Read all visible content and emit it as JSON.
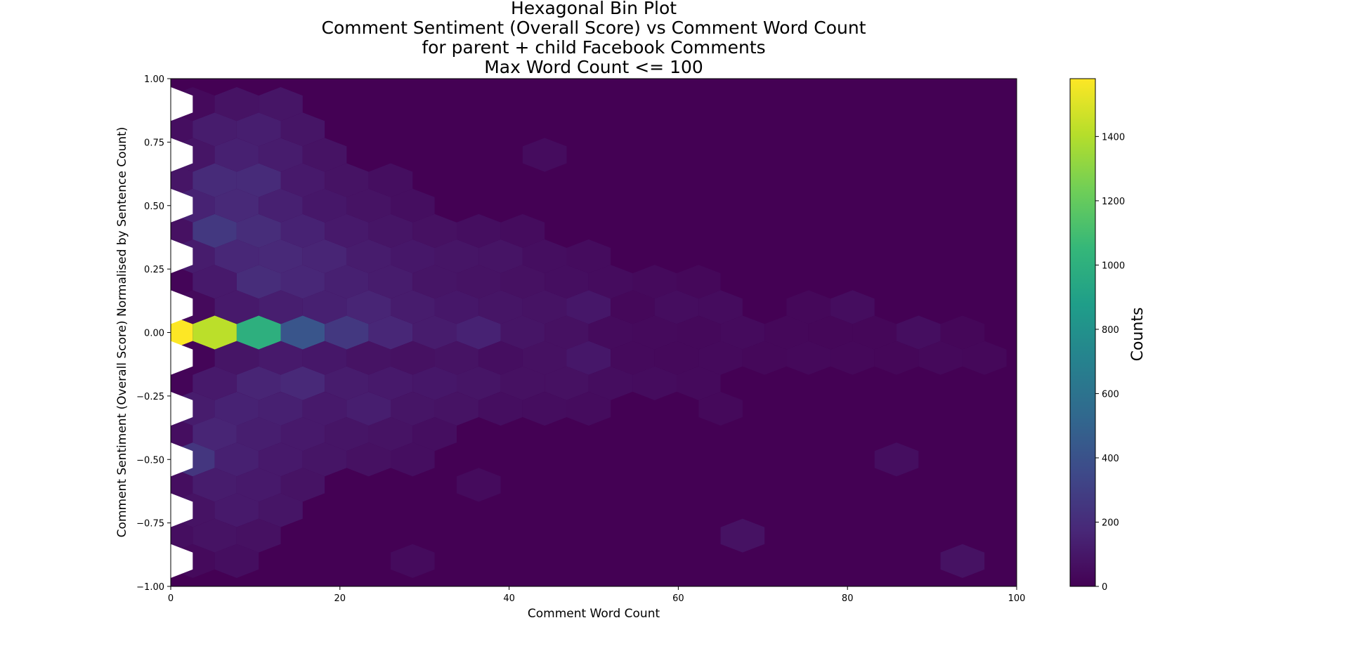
{
  "chart_data": {
    "type": "hexbin",
    "title_lines": [
      "Hexagonal Bin Plot",
      "Comment Sentiment (Overall Score) vs Comment Word Count",
      "for parent + child Facebook Comments",
      "Max Word Count <= 100"
    ],
    "xlabel": "Comment Word Count",
    "ylabel": "Comment Sentiment (Overall Score) Normalised by Sentence Count)",
    "xlim": [
      0,
      100
    ],
    "ylim": [
      -1.0,
      1.0
    ],
    "xticks": [
      0,
      20,
      40,
      60,
      80,
      100
    ],
    "xtick_labels": [
      "0",
      "20",
      "40",
      "60",
      "80",
      "100"
    ],
    "yticks": [
      1.0,
      0.75,
      0.5,
      0.25,
      0.0,
      -0.25,
      -0.5,
      -0.75,
      -1.0
    ],
    "ytick_labels": [
      "1.00",
      "0.75",
      "0.50",
      "0.25",
      "0.00",
      "−0.25",
      "−0.50",
      "−0.75",
      "−1.00"
    ],
    "colorbar": {
      "label": "Counts",
      "range": [
        0,
        1580
      ],
      "ticks": [
        0,
        200,
        400,
        600,
        800,
        1000,
        1200,
        1400
      ],
      "tick_labels": [
        "0",
        "200",
        "400",
        "600",
        "800",
        "1000",
        "1200",
        "1400"
      ],
      "colormap": "viridis"
    },
    "colormap_stops": [
      "#440154",
      "#482878",
      "#3e4989",
      "#31688e",
      "#26828e",
      "#1f9e89",
      "#35b779",
      "#6ece58",
      "#b5de2b",
      "#fde725"
    ],
    "background_color": "#440154",
    "grid": {
      "x_start": 0,
      "x_step": 5.2,
      "y_start": -1.0,
      "y_step": 0.1,
      "columns": 20,
      "rows": 21
    },
    "bins": [
      {
        "x": 0.0,
        "y": 0.0,
        "count": 1580
      },
      {
        "x": 5.2,
        "y": 0.0,
        "count": 1420
      },
      {
        "x": 10.4,
        "y": 0.0,
        "count": 1000
      },
      {
        "x": 15.6,
        "y": 0.0,
        "count": 420
      },
      {
        "x": 20.8,
        "y": 0.0,
        "count": 260
      },
      {
        "x": 26.0,
        "y": 0.0,
        "count": 170
      },
      {
        "x": 31.2,
        "y": 0.0,
        "count": 120
      },
      {
        "x": 36.4,
        "y": 0.0,
        "count": 150
      },
      {
        "x": 41.6,
        "y": 0.0,
        "count": 90
      },
      {
        "x": 46.8,
        "y": 0.0,
        "count": 70
      },
      {
        "x": 52.0,
        "y": 0.0,
        "count": 45
      },
      {
        "x": 57.2,
        "y": 0.0,
        "count": 40
      },
      {
        "x": 62.4,
        "y": 0.0,
        "count": 35
      },
      {
        "x": 67.6,
        "y": 0.0,
        "count": 45
      },
      {
        "x": 72.8,
        "y": 0.0,
        "count": 30
      },
      {
        "x": 78.0,
        "y": 0.0,
        "count": 25
      },
      {
        "x": 83.2,
        "y": 0.0,
        "count": 25
      },
      {
        "x": 88.4,
        "y": 0.0,
        "count": 60
      },
      {
        "x": 93.6,
        "y": 0.0,
        "count": 25
      },
      {
        "x": 2.6,
        "y": 0.1,
        "count": 40
      },
      {
        "x": 7.8,
        "y": 0.1,
        "count": 110
      },
      {
        "x": 13.0,
        "y": 0.1,
        "count": 130
      },
      {
        "x": 18.2,
        "y": 0.1,
        "count": 140
      },
      {
        "x": 23.4,
        "y": 0.1,
        "count": 160
      },
      {
        "x": 28.6,
        "y": 0.1,
        "count": 120
      },
      {
        "x": 33.8,
        "y": 0.1,
        "count": 100
      },
      {
        "x": 39.0,
        "y": 0.1,
        "count": 90
      },
      {
        "x": 44.2,
        "y": 0.1,
        "count": 80
      },
      {
        "x": 49.4,
        "y": 0.1,
        "count": 100
      },
      {
        "x": 54.6,
        "y": 0.1,
        "count": 30
      },
      {
        "x": 59.8,
        "y": 0.1,
        "count": 55
      },
      {
        "x": 65.0,
        "y": 0.1,
        "count": 50
      },
      {
        "x": 75.4,
        "y": 0.1,
        "count": 30
      },
      {
        "x": 80.6,
        "y": 0.1,
        "count": 55
      },
      {
        "x": 2.6,
        "y": -0.1,
        "count": 20
      },
      {
        "x": 7.8,
        "y": -0.1,
        "count": 90
      },
      {
        "x": 13.0,
        "y": -0.1,
        "count": 110
      },
      {
        "x": 18.2,
        "y": -0.1,
        "count": 100
      },
      {
        "x": 23.4,
        "y": -0.1,
        "count": 80
      },
      {
        "x": 28.6,
        "y": -0.1,
        "count": 70
      },
      {
        "x": 33.8,
        "y": -0.1,
        "count": 80
      },
      {
        "x": 39.0,
        "y": -0.1,
        "count": 60
      },
      {
        "x": 44.2,
        "y": -0.1,
        "count": 70
      },
      {
        "x": 49.4,
        "y": -0.1,
        "count": 100
      },
      {
        "x": 54.6,
        "y": -0.1,
        "count": 40
      },
      {
        "x": 59.8,
        "y": -0.1,
        "count": 35
      },
      {
        "x": 65.0,
        "y": -0.1,
        "count": 40
      },
      {
        "x": 70.2,
        "y": -0.1,
        "count": 30
      },
      {
        "x": 75.4,
        "y": -0.1,
        "count": 35
      },
      {
        "x": 80.6,
        "y": -0.1,
        "count": 30
      },
      {
        "x": 85.8,
        "y": -0.1,
        "count": 25
      },
      {
        "x": 91.0,
        "y": -0.1,
        "count": 35
      },
      {
        "x": 96.2,
        "y": -0.1,
        "count": 30
      },
      {
        "x": 0.0,
        "y": 0.2,
        "count": 20
      },
      {
        "x": 5.2,
        "y": 0.2,
        "count": 110
      },
      {
        "x": 10.4,
        "y": 0.2,
        "count": 200
      },
      {
        "x": 15.6,
        "y": 0.2,
        "count": 170
      },
      {
        "x": 20.8,
        "y": 0.2,
        "count": 140
      },
      {
        "x": 26.0,
        "y": 0.2,
        "count": 120
      },
      {
        "x": 31.2,
        "y": 0.2,
        "count": 90
      },
      {
        "x": 36.4,
        "y": 0.2,
        "count": 80
      },
      {
        "x": 41.6,
        "y": 0.2,
        "count": 70
      },
      {
        "x": 46.8,
        "y": 0.2,
        "count": 60
      },
      {
        "x": 52.0,
        "y": 0.2,
        "count": 50
      },
      {
        "x": 57.2,
        "y": 0.2,
        "count": 40
      },
      {
        "x": 62.4,
        "y": 0.2,
        "count": 30
      },
      {
        "x": 0.0,
        "y": -0.2,
        "count": 20
      },
      {
        "x": 5.2,
        "y": -0.2,
        "count": 110
      },
      {
        "x": 10.4,
        "y": -0.2,
        "count": 160
      },
      {
        "x": 15.6,
        "y": -0.2,
        "count": 180
      },
      {
        "x": 20.8,
        "y": -0.2,
        "count": 120
      },
      {
        "x": 26.0,
        "y": -0.2,
        "count": 110
      },
      {
        "x": 31.2,
        "y": -0.2,
        "count": 100
      },
      {
        "x": 36.4,
        "y": -0.2,
        "count": 90
      },
      {
        "x": 41.6,
        "y": -0.2,
        "count": 70
      },
      {
        "x": 46.8,
        "y": -0.2,
        "count": 70
      },
      {
        "x": 52.0,
        "y": -0.2,
        "count": 55
      },
      {
        "x": 57.2,
        "y": -0.2,
        "count": 50
      },
      {
        "x": 62.4,
        "y": -0.2,
        "count": 40
      },
      {
        "x": 2.6,
        "y": 0.3,
        "count": 120
      },
      {
        "x": 7.8,
        "y": 0.3,
        "count": 170
      },
      {
        "x": 13.0,
        "y": 0.3,
        "count": 180
      },
      {
        "x": 18.2,
        "y": 0.3,
        "count": 160
      },
      {
        "x": 23.4,
        "y": 0.3,
        "count": 120
      },
      {
        "x": 28.6,
        "y": 0.3,
        "count": 100
      },
      {
        "x": 33.8,
        "y": 0.3,
        "count": 90
      },
      {
        "x": 39.0,
        "y": 0.3,
        "count": 85
      },
      {
        "x": 44.2,
        "y": 0.3,
        "count": 60
      },
      {
        "x": 49.4,
        "y": 0.3,
        "count": 50
      },
      {
        "x": 2.6,
        "y": -0.3,
        "count": 120
      },
      {
        "x": 7.8,
        "y": -0.3,
        "count": 150
      },
      {
        "x": 13.0,
        "y": -0.3,
        "count": 140
      },
      {
        "x": 18.2,
        "y": -0.3,
        "count": 110
      },
      {
        "x": 23.4,
        "y": -0.3,
        "count": 130
      },
      {
        "x": 28.6,
        "y": -0.3,
        "count": 90
      },
      {
        "x": 33.8,
        "y": -0.3,
        "count": 80
      },
      {
        "x": 39.0,
        "y": -0.3,
        "count": 60
      },
      {
        "x": 44.2,
        "y": -0.3,
        "count": 55
      },
      {
        "x": 49.4,
        "y": -0.3,
        "count": 50
      },
      {
        "x": 65.0,
        "y": -0.3,
        "count": 35
      },
      {
        "x": 0.0,
        "y": 0.4,
        "count": 70
      },
      {
        "x": 5.2,
        "y": 0.4,
        "count": 260
      },
      {
        "x": 10.4,
        "y": 0.4,
        "count": 200
      },
      {
        "x": 15.6,
        "y": 0.4,
        "count": 150
      },
      {
        "x": 20.8,
        "y": 0.4,
        "count": 110
      },
      {
        "x": 26.0,
        "y": 0.4,
        "count": 90
      },
      {
        "x": 31.2,
        "y": 0.4,
        "count": 70
      },
      {
        "x": 36.4,
        "y": 0.4,
        "count": 60
      },
      {
        "x": 41.6,
        "y": 0.4,
        "count": 50
      },
      {
        "x": 0.0,
        "y": -0.4,
        "count": 60
      },
      {
        "x": 5.2,
        "y": -0.4,
        "count": 160
      },
      {
        "x": 10.4,
        "y": -0.4,
        "count": 130
      },
      {
        "x": 15.6,
        "y": -0.4,
        "count": 110
      },
      {
        "x": 20.8,
        "y": -0.4,
        "count": 90
      },
      {
        "x": 26.0,
        "y": -0.4,
        "count": 80
      },
      {
        "x": 31.2,
        "y": -0.4,
        "count": 60
      },
      {
        "x": 2.6,
        "y": 0.5,
        "count": 150
      },
      {
        "x": 7.8,
        "y": 0.5,
        "count": 180
      },
      {
        "x": 13.0,
        "y": 0.5,
        "count": 140
      },
      {
        "x": 18.2,
        "y": 0.5,
        "count": 100
      },
      {
        "x": 23.4,
        "y": 0.5,
        "count": 80
      },
      {
        "x": 28.6,
        "y": 0.5,
        "count": 60
      },
      {
        "x": 2.6,
        "y": -0.5,
        "count": 250
      },
      {
        "x": 7.8,
        "y": -0.5,
        "count": 140
      },
      {
        "x": 13.0,
        "y": -0.5,
        "count": 110
      },
      {
        "x": 18.2,
        "y": -0.5,
        "count": 90
      },
      {
        "x": 23.4,
        "y": -0.5,
        "count": 70
      },
      {
        "x": 28.6,
        "y": -0.5,
        "count": 60
      },
      {
        "x": 85.8,
        "y": -0.5,
        "count": 60
      },
      {
        "x": 0.0,
        "y": 0.6,
        "count": 90
      },
      {
        "x": 5.2,
        "y": 0.6,
        "count": 190
      },
      {
        "x": 10.4,
        "y": 0.6,
        "count": 190
      },
      {
        "x": 15.6,
        "y": 0.6,
        "count": 110
      },
      {
        "x": 20.8,
        "y": 0.6,
        "count": 80
      },
      {
        "x": 26.0,
        "y": 0.6,
        "count": 60
      },
      {
        "x": 0.0,
        "y": -0.6,
        "count": 60
      },
      {
        "x": 5.2,
        "y": -0.6,
        "count": 120
      },
      {
        "x": 10.4,
        "y": -0.6,
        "count": 110
      },
      {
        "x": 15.6,
        "y": -0.6,
        "count": 80
      },
      {
        "x": 36.4,
        "y": -0.6,
        "count": 45
      },
      {
        "x": 2.6,
        "y": 0.7,
        "count": 90
      },
      {
        "x": 7.8,
        "y": 0.7,
        "count": 140
      },
      {
        "x": 13.0,
        "y": 0.7,
        "count": 120
      },
      {
        "x": 18.2,
        "y": 0.7,
        "count": 80
      },
      {
        "x": 44.2,
        "y": 0.7,
        "count": 50
      },
      {
        "x": 2.6,
        "y": -0.7,
        "count": 80
      },
      {
        "x": 7.8,
        "y": -0.7,
        "count": 110
      },
      {
        "x": 13.0,
        "y": -0.7,
        "count": 90
      },
      {
        "x": 0.0,
        "y": 0.8,
        "count": 60
      },
      {
        "x": 5.2,
        "y": 0.8,
        "count": 120
      },
      {
        "x": 10.4,
        "y": 0.8,
        "count": 130
      },
      {
        "x": 15.6,
        "y": 0.8,
        "count": 90
      },
      {
        "x": 0.0,
        "y": -0.8,
        "count": 60
      },
      {
        "x": 5.2,
        "y": -0.8,
        "count": 80
      },
      {
        "x": 10.4,
        "y": -0.8,
        "count": 70
      },
      {
        "x": 67.6,
        "y": -0.8,
        "count": 75
      },
      {
        "x": 2.6,
        "y": 0.9,
        "count": 40
      },
      {
        "x": 7.8,
        "y": 0.9,
        "count": 80
      },
      {
        "x": 13.0,
        "y": 0.9,
        "count": 90
      },
      {
        "x": 2.6,
        "y": -0.9,
        "count": 40
      },
      {
        "x": 7.8,
        "y": -0.9,
        "count": 60
      },
      {
        "x": 28.6,
        "y": -0.9,
        "count": 45
      },
      {
        "x": 93.6,
        "y": -0.9,
        "count": 75
      }
    ],
    "empty_bins": [
      {
        "x": 0.0,
        "y": 0.9
      },
      {
        "x": 0.0,
        "y": 0.7
      },
      {
        "x": 0.0,
        "y": 0.5
      },
      {
        "x": 0.0,
        "y": 0.3
      },
      {
        "x": 0.0,
        "y": 0.1
      },
      {
        "x": 0.0,
        "y": -0.1
      },
      {
        "x": 0.0,
        "y": -0.3
      },
      {
        "x": 0.0,
        "y": -0.5
      },
      {
        "x": 0.0,
        "y": -0.7
      },
      {
        "x": 0.0,
        "y": -0.9
      }
    ]
  }
}
